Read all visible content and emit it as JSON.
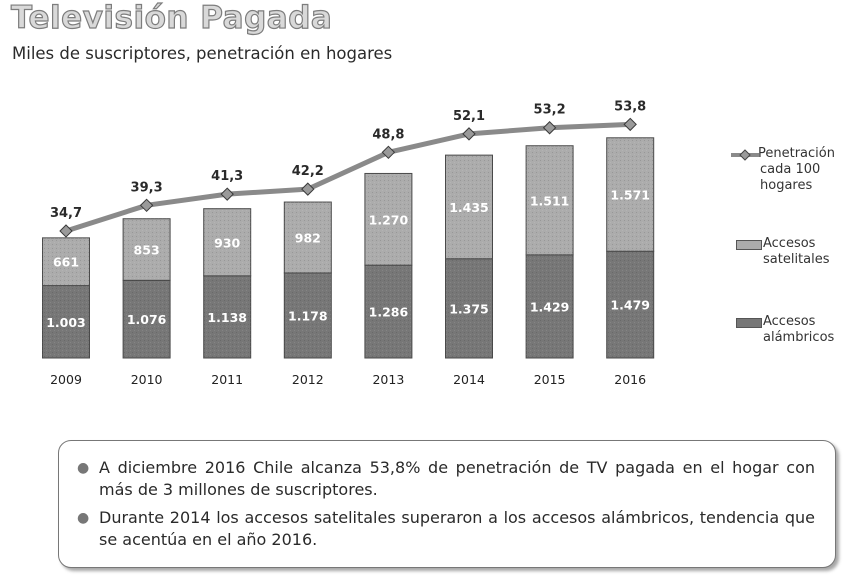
{
  "title": "Televisión Pagada",
  "subtitle": "Miles de suscriptores, penetración en hogares",
  "legend": {
    "penetracion_1": "Penetración",
    "penetracion_2": "cada 100",
    "penetracion_3": "hogares",
    "satelital_1": "Accesos",
    "satelital_2": "satelitales",
    "alambrico_1": "Accesos",
    "alambrico_2": "alámbricos"
  },
  "colors": {
    "alambricos": "#777777",
    "satelitales": "#acacac",
    "line": "#8a8a8a",
    "marker": "#9a9a9a"
  },
  "chart_data": {
    "type": "bar",
    "stacked": true,
    "categories": [
      "2009",
      "2010",
      "2011",
      "2012",
      "2013",
      "2014",
      "2015",
      "2016"
    ],
    "series": [
      {
        "name": "Accesos alámbricos",
        "values": [
          1003,
          1076,
          1138,
          1178,
          1286,
          1375,
          1429,
          1479
        ],
        "labels": [
          "1.003",
          "1.076",
          "1.138",
          "1.178",
          "1.286",
          "1.375",
          "1.429",
          "1.479"
        ]
      },
      {
        "name": "Accesos satelitales",
        "values": [
          661,
          853,
          930,
          982,
          1270,
          1435,
          1511,
          1571
        ],
        "labels": [
          "661",
          "853",
          "930",
          "982",
          "1.270",
          "1.435",
          "1.511",
          "1.571"
        ]
      }
    ],
    "line_series": {
      "name": "Penetración cada 100 hogares",
      "values": [
        34.7,
        39.3,
        41.3,
        42.2,
        48.8,
        52.1,
        53.2,
        53.8
      ],
      "labels": [
        "34,7",
        "39,3",
        "41,3",
        "42,2",
        "48,8",
        "52,1",
        "53,2",
        "53,8"
      ]
    },
    "legend_position": "right",
    "grid": false
  },
  "notes": [
    "A diciembre 2016 Chile alcanza 53,8% de penetración de TV pagada en el hogar con más de 3 millones de suscriptores.",
    "Durante 2014 los accesos satelitales superaron a los accesos alámbricos, tendencia que se acentúa en el año 2016."
  ]
}
